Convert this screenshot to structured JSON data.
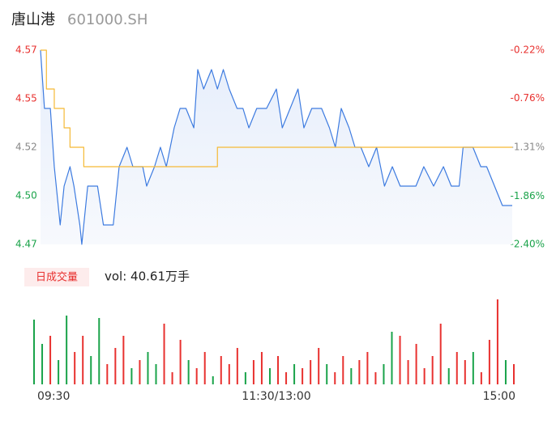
{
  "chart_data": [
    {
      "type": "line",
      "title": "唐山港",
      "subtitle": "601000.SH",
      "xlim": [
        0,
        240
      ],
      "xticks": [
        {
          "value": 0,
          "label": "09:30"
        },
        {
          "value": 120,
          "label": "11:30/13:00"
        },
        {
          "value": 240,
          "label": "15:00"
        }
      ],
      "ylim": [
        4.47,
        4.57
      ],
      "yticks": [
        {
          "value": 4.47,
          "label": "4.47"
        },
        {
          "value": 4.495,
          "label": "4.50"
        },
        {
          "value": 4.52,
          "label": "4.52"
        },
        {
          "value": 4.545,
          "label": "4.55"
        },
        {
          "value": 4.57,
          "label": "4.57"
        }
      ],
      "ytick_colors": [
        "#1aa34a",
        "#1aa34a",
        "#888888",
        "#e8312f",
        "#e8312f"
      ],
      "y2lim": [
        -2.4,
        -0.22
      ],
      "y2ticks": [
        {
          "value": -2.4,
          "label": "-2.40%"
        },
        {
          "value": -1.86,
          "label": "-1.86%"
        },
        {
          "value": -1.31,
          "label": "-1.31%"
        },
        {
          "value": -0.76,
          "label": "-0.76%"
        },
        {
          "value": -0.22,
          "label": "-0.22%"
        }
      ],
      "y2tick_colors": [
        "#1aa34a",
        "#1aa34a",
        "#888888",
        "#e8312f",
        "#e8312f"
      ],
      "series": [
        {
          "color": "#3d7be0",
          "x": [
            0,
            2,
            5,
            7,
            10,
            12,
            15,
            17,
            20,
            21,
            24,
            29,
            32,
            37,
            40,
            44,
            47,
            52,
            54,
            58,
            61,
            64,
            68,
            71,
            74,
            78,
            80,
            83,
            87,
            90,
            93,
            96,
            100,
            103,
            106,
            110,
            115,
            120,
            123,
            127,
            131,
            134,
            138,
            143,
            147,
            150,
            153,
            157,
            160,
            163,
            167,
            171,
            175,
            179,
            183,
            187,
            191,
            195,
            200,
            205,
            209,
            213,
            215,
            220,
            224,
            227,
            231,
            235,
            240
          ],
          "values": [
            4.57,
            4.54,
            4.54,
            4.51,
            4.48,
            4.5,
            4.51,
            4.5,
            4.48,
            4.47,
            4.5,
            4.5,
            4.48,
            4.48,
            4.51,
            4.52,
            4.51,
            4.51,
            4.5,
            4.51,
            4.52,
            4.51,
            4.53,
            4.54,
            4.54,
            4.53,
            4.56,
            4.55,
            4.56,
            4.55,
            4.56,
            4.55,
            4.54,
            4.54,
            4.53,
            4.54,
            4.54,
            4.55,
            4.53,
            4.54,
            4.55,
            4.53,
            4.54,
            4.54,
            4.53,
            4.52,
            4.54,
            4.53,
            4.52,
            4.52,
            4.51,
            4.52,
            4.5,
            4.51,
            4.5,
            4.5,
            4.5,
            4.51,
            4.5,
            4.51,
            4.5,
            4.5,
            4.52,
            4.52,
            4.51,
            4.51,
            4.5,
            4.49,
            4.49
          ]
        },
        {
          "color": "#f5b935",
          "x": [
            0,
            3,
            7,
            12,
            15,
            22,
            90,
            240
          ],
          "values": [
            4.57,
            4.55,
            4.54,
            4.53,
            4.52,
            4.51,
            4.52,
            4.52
          ]
        }
      ]
    },
    {
      "type": "bar",
      "legend": "日成交量",
      "label": "vol: 40.61万手",
      "ylim": [
        0,
        110
      ],
      "values": [
        80,
        50,
        60,
        30,
        85,
        40,
        60,
        35,
        82,
        25,
        45,
        60,
        20,
        30,
        40,
        25,
        75,
        15,
        55,
        30,
        20,
        40,
        10,
        35,
        25,
        45,
        15,
        30,
        40,
        20,
        35,
        15,
        25,
        20,
        30,
        45,
        25,
        15,
        35,
        20,
        30,
        40,
        15,
        25,
        65,
        60,
        30,
        50,
        20,
        35,
        75,
        20,
        40,
        30,
        40,
        15,
        55,
        105,
        30,
        25
      ],
      "colors": [
        "#1aa34a",
        "#1aa34a",
        "#e8312f",
        "#1aa34a",
        "#1aa34a",
        "#e8312f",
        "#e8312f",
        "#1aa34a",
        "#1aa34a",
        "#e8312f",
        "#e8312f",
        "#e8312f",
        "#1aa34a",
        "#e8312f",
        "#1aa34a",
        "#1aa34a",
        "#e8312f",
        "#e8312f",
        "#e8312f",
        "#1aa34a",
        "#e8312f",
        "#e8312f",
        "#1aa34a",
        "#e8312f",
        "#e8312f",
        "#e8312f",
        "#1aa34a",
        "#e8312f",
        "#e8312f",
        "#1aa34a",
        "#e8312f",
        "#e8312f",
        "#1aa34a",
        "#e8312f",
        "#e8312f",
        "#e8312f",
        "#1aa34a",
        "#e8312f",
        "#e8312f",
        "#1aa34a",
        "#e8312f",
        "#e8312f",
        "#e8312f",
        "#1aa34a",
        "#1aa34a",
        "#e8312f",
        "#e8312f",
        "#e8312f",
        "#e8312f",
        "#e8312f",
        "#e8312f",
        "#1aa34a",
        "#e8312f",
        "#e8312f",
        "#1aa34a",
        "#e8312f",
        "#e8312f",
        "#e8312f",
        "#1aa34a",
        "#e8312f"
      ]
    }
  ]
}
